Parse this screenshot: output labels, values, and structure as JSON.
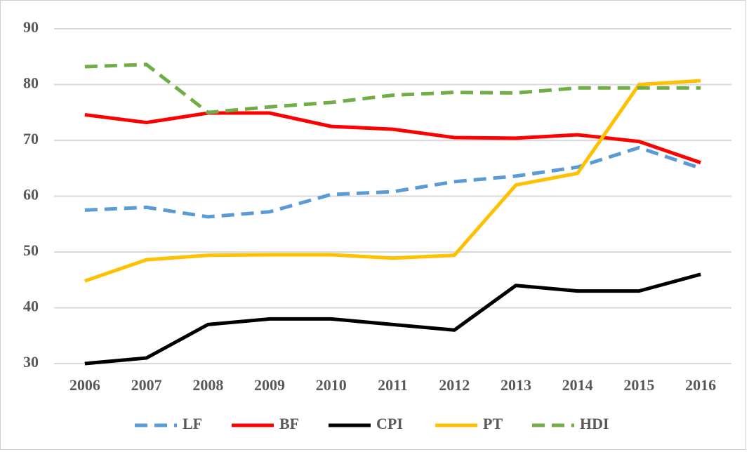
{
  "chart_data": {
    "type": "line",
    "categories": [
      "2006",
      "2007",
      "2008",
      "2009",
      "2010",
      "2011",
      "2012",
      "2013",
      "2014",
      "2015",
      "2016"
    ],
    "series": [
      {
        "name": "LF",
        "color": "#5b9bd5",
        "dashed": true,
        "values": [
          57.5,
          58,
          56.3,
          57.2,
          60.3,
          60.8,
          62.6,
          63.6,
          65.2,
          68.7,
          65
        ]
      },
      {
        "name": "BF",
        "color": "#ff0000",
        "dashed": false,
        "values": [
          74.6,
          73.2,
          74.9,
          74.9,
          72.5,
          72,
          70.5,
          70.4,
          71,
          69.8,
          66
        ]
      },
      {
        "name": "CPI",
        "color": "#000000",
        "dashed": false,
        "values": [
          30,
          31,
          37,
          38,
          38,
          37,
          36,
          44,
          43,
          43,
          46
        ]
      },
      {
        "name": "PT",
        "color": "#ffc000",
        "dashed": false,
        "values": [
          44.8,
          48.6,
          49.4,
          49.5,
          49.5,
          48.9,
          49.4,
          62,
          64.1,
          80,
          80.7
        ]
      },
      {
        "name": "HDI",
        "color": "#70ad47",
        "dashed": true,
        "values": [
          83.2,
          83.6,
          75,
          76,
          76.8,
          78.1,
          78.6,
          78.5,
          79.4,
          79.4,
          79.4
        ]
      }
    ],
    "ylim": [
      30,
      90
    ],
    "yticks": [
      30,
      40,
      50,
      60,
      70,
      80,
      90
    ],
    "grid": true,
    "legend": "bottom"
  }
}
